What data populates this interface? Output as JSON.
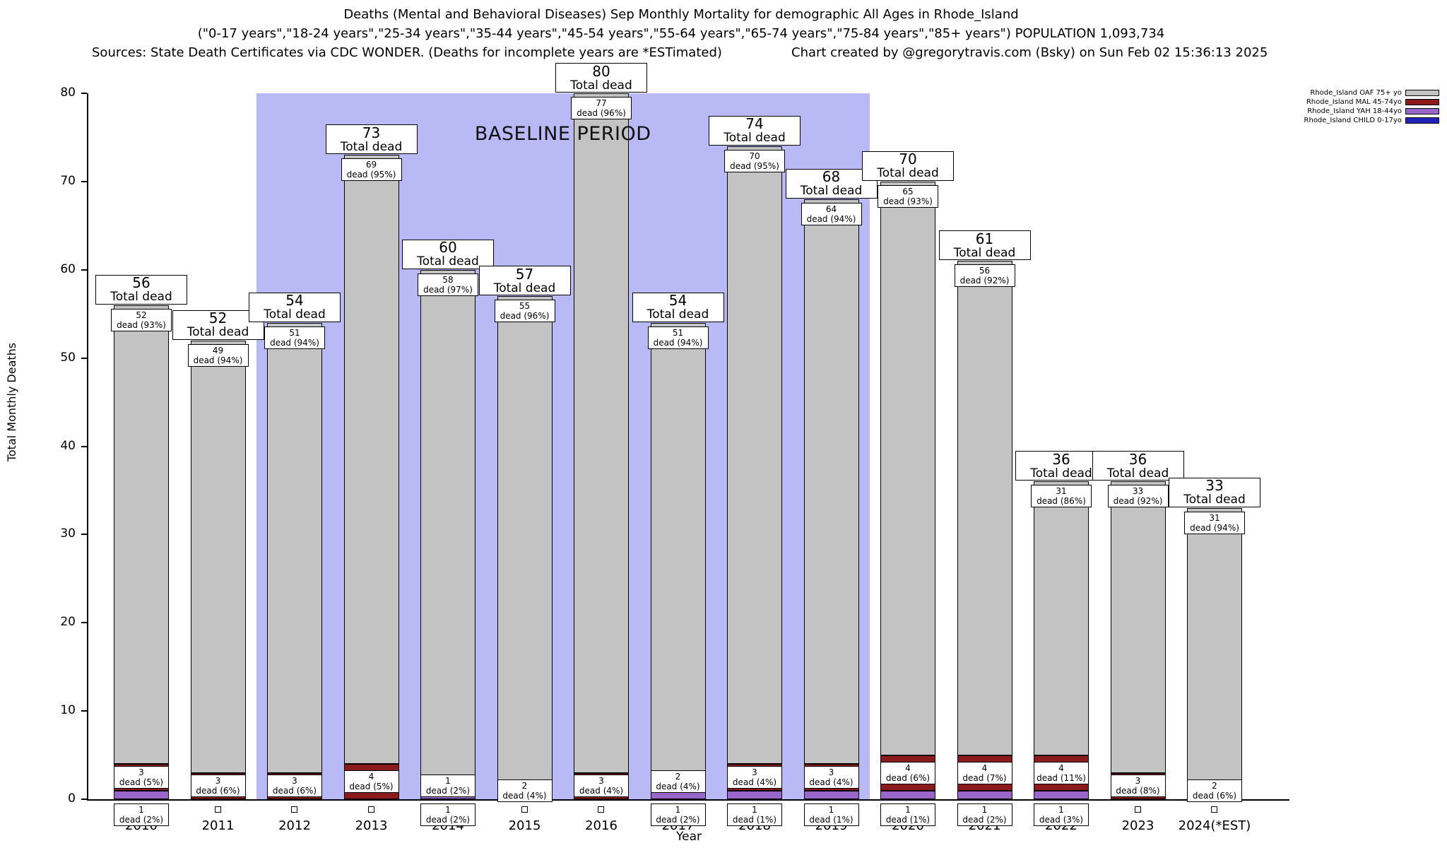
{
  "header": {
    "title_line1": "Deaths (Mental and Behavioral Diseases) Sep Monthly Mortality for demographic All Ages in Rhode_Island",
    "title_line2": "(\"0-17 years\",\"18-24 years\",\"25-34 years\",\"35-44 years\",\"45-54 years\",\"55-64 years\",\"65-74 years\",\"75-84 years\",\"85+ years\") POPULATION 1,093,734",
    "title_line3_left": "Sources: State Death Certificates via CDC WONDER. (Deaths for incomplete years are *ESTimated)",
    "title_line3_right": "Chart created by @gregorytravis.com (Bsky) on Sun Feb 02 15:36:13 2025"
  },
  "chart_data": {
    "type": "bar",
    "stacked": true,
    "title": "Deaths (Mental and Behavioral Diseases) Sep Monthly Mortality for demographic All Ages in Rhode_Island",
    "xlabel": "Year",
    "ylabel": "Total Monthly Deaths",
    "ylim": [
      0,
      80
    ],
    "yticks": [
      0,
      10,
      20,
      30,
      40,
      50,
      60,
      70,
      80
    ],
    "grid": false,
    "legend_position": "top-right",
    "categories": [
      "2010",
      "2011",
      "2012",
      "2013",
      "2014",
      "2015",
      "2016",
      "2017",
      "2018",
      "2019",
      "2020",
      "2021",
      "2022",
      "2023",
      "2024(*EST)"
    ],
    "totals": [
      56,
      52,
      54,
      73,
      60,
      57,
      80,
      54,
      74,
      68,
      70,
      61,
      36,
      36,
      33
    ],
    "total_label_line2": "Total dead",
    "segment_label_word": "dead",
    "series": [
      {
        "name": "Rhode_Island OAF 75+ yo",
        "color": "#c3c3c3",
        "values": [
          52,
          49,
          51,
          69,
          58,
          55,
          77,
          51,
          70,
          64,
          65,
          56,
          31,
          33,
          31
        ],
        "pcts": [
          "93%",
          "94%",
          "94%",
          "95%",
          "97%",
          "96%",
          "96%",
          "94%",
          "95%",
          "94%",
          "93%",
          "92%",
          "86%",
          "92%",
          "94%"
        ]
      },
      {
        "name": "Rhode_Island MAL 45-74yo",
        "color": "#8b1a1a",
        "values": [
          3,
          3,
          3,
          4,
          1,
          2,
          3,
          2,
          3,
          3,
          4,
          4,
          4,
          3,
          2
        ],
        "pcts": [
          "5%",
          "6%",
          "6%",
          "5%",
          "2%",
          "4%",
          "4%",
          "4%",
          "4%",
          "4%",
          "6%",
          "7%",
          "11%",
          "8%",
          "6%"
        ]
      },
      {
        "name": "Rhode_Island YAH 18-44yo",
        "color": "#9966cc",
        "values": [
          1,
          0,
          0,
          0,
          1,
          0,
          0,
          1,
          1,
          1,
          1,
          1,
          1,
          0,
          0
        ],
        "pcts": [
          "2%",
          "",
          "",
          "",
          "2%",
          "",
          "",
          "2%",
          "1%",
          "1%",
          "1%",
          "2%",
          "3%",
          "",
          ""
        ]
      },
      {
        "name": "Rhode_Island CHILD 0-17yo",
        "color": "#2222bb",
        "values": [
          0,
          0,
          0,
          0,
          0,
          0,
          0,
          0,
          0,
          0,
          0,
          0,
          0,
          0,
          0
        ],
        "pcts": [
          "",
          "",
          "",
          "",
          "",
          "",
          "",
          "",
          "",
          "",
          "",
          "",
          "",
          "",
          ""
        ]
      }
    ],
    "baseline": {
      "label": "BASELINE PERIOD",
      "start_category": "2012",
      "end_category": "2019",
      "color": "#b9b9f6"
    }
  }
}
